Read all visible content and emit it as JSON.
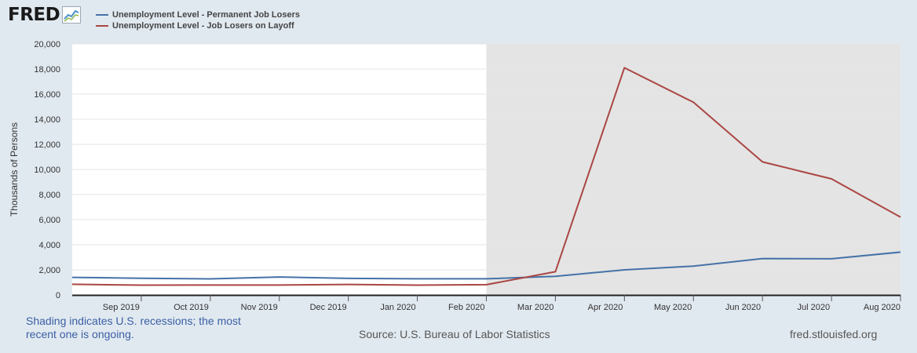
{
  "brand": {
    "name": "FRED"
  },
  "footer": {
    "note": "Shading indicates U.S. recessions; the most recent one is ongoing.",
    "source": "Source: U.S. Bureau of Labor Statistics",
    "site": "fred.stlouisfed.org"
  },
  "colors": {
    "background": "#e1e9f0",
    "plot_background": "#ffffff",
    "recession_shading": "#e4e4e4",
    "series_permanent": "#4572a7",
    "series_layoff": "#aa4643"
  },
  "chart_data": {
    "type": "line",
    "title": "",
    "xlabel": "",
    "ylabel": "Thousands of Persons",
    "x": [
      "2019-08",
      "2019-09",
      "2019-10",
      "2019-11",
      "2019-12",
      "2020-01",
      "2020-02",
      "2020-03",
      "2020-04",
      "2020-05",
      "2020-06",
      "2020-07",
      "2020-08"
    ],
    "x_tick_labels": [
      "Sep 2019",
      "Oct 2019",
      "Nov 2019",
      "Dec 2019",
      "Jan 2020",
      "Feb 2020",
      "Mar 2020",
      "Apr 2020",
      "May 2020",
      "Jun 2020",
      "Jul 2020",
      "Aug 2020"
    ],
    "x_tick_values": [
      "2019-09",
      "2019-10",
      "2019-11",
      "2019-12",
      "2020-01",
      "2020-02",
      "2020-03",
      "2020-04",
      "2020-05",
      "2020-06",
      "2020-07",
      "2020-08"
    ],
    "ylim": [
      0,
      20000
    ],
    "y_ticks": [
      0,
      2000,
      4000,
      6000,
      8000,
      10000,
      12000,
      14000,
      16000,
      18000,
      20000
    ],
    "y_tick_labels": [
      "0",
      "2,000",
      "4,000",
      "6,000",
      "8,000",
      "10,000",
      "12,000",
      "14,000",
      "16,000",
      "18,000",
      "20,000"
    ],
    "grid": true,
    "legend_position": "top-left",
    "recession_shading": {
      "start": "2020-02",
      "end": "2020-08"
    },
    "series": [
      {
        "name": "Unemployment Level - Permanent Job Losers",
        "color": "#4572a7",
        "values": [
          1400,
          1330,
          1280,
          1430,
          1320,
          1290,
          1290,
          1480,
          2000,
          2300,
          2900,
          2880,
          3410
        ]
      },
      {
        "name": "Unemployment Level - Job Losers on Layoff",
        "color": "#aa4643",
        "values": [
          850,
          780,
          790,
          790,
          840,
          780,
          820,
          1850,
          18100,
          15350,
          10600,
          9250,
          6200
        ]
      }
    ]
  }
}
